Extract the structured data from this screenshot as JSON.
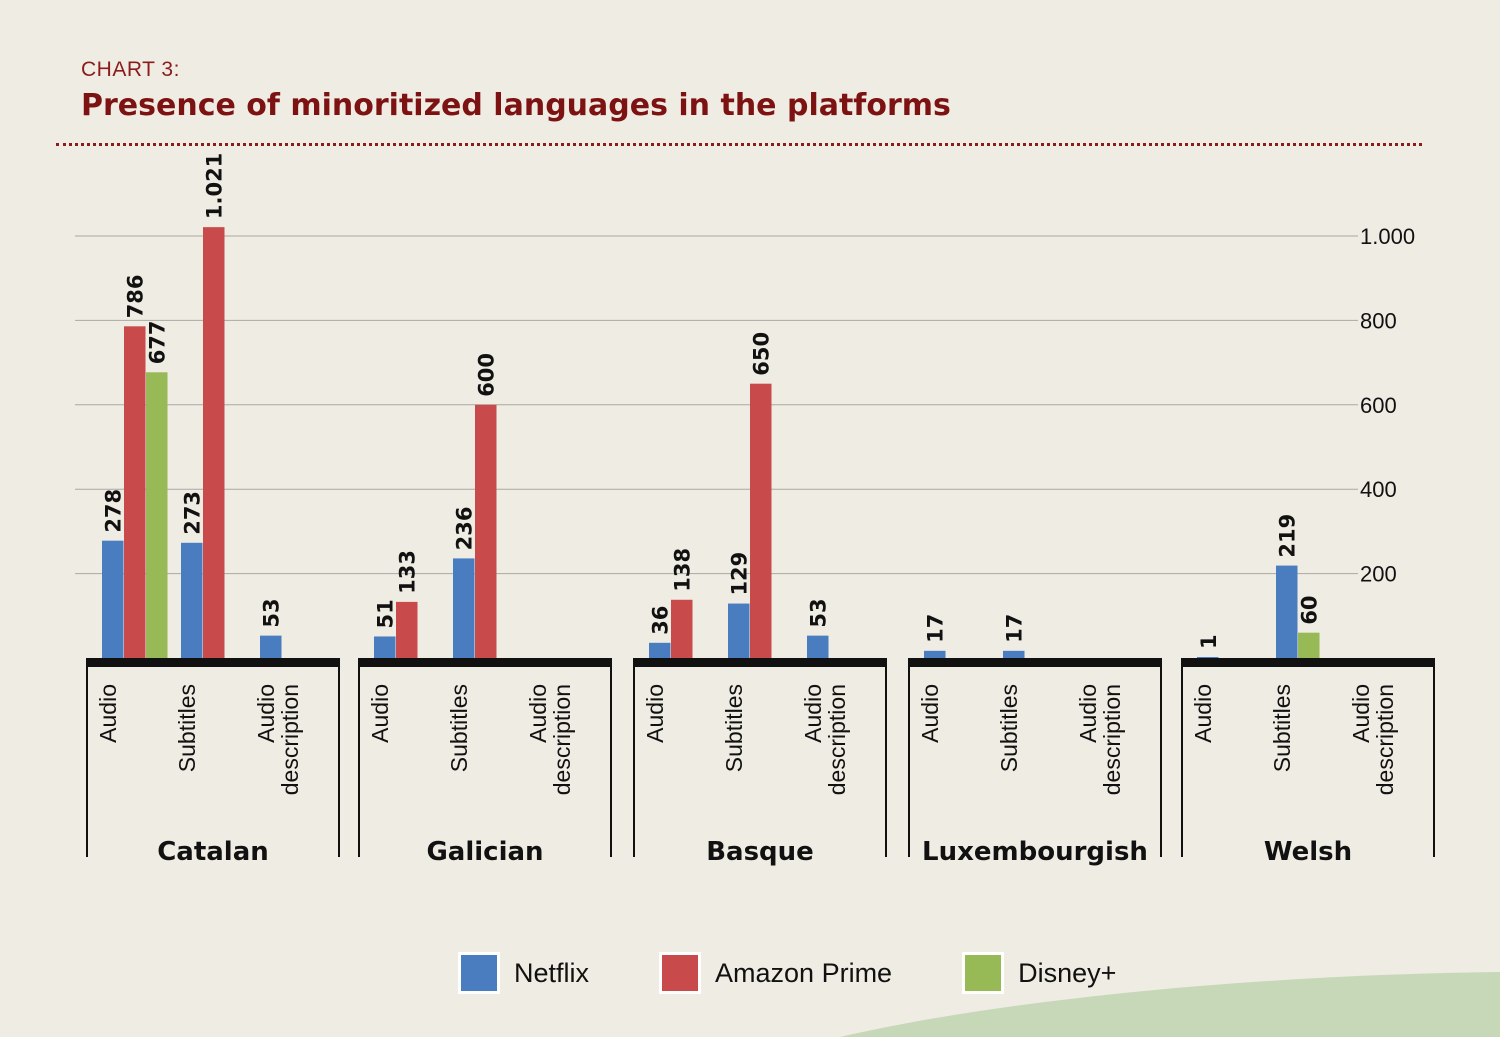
{
  "header": {
    "kicker": "CHART 3:",
    "title": "Presence of minoritized languages in the platforms"
  },
  "colors": {
    "netflix": "#4a7cc0",
    "amazon": "#c94a4a",
    "disney": "#97b956",
    "title": "#7d1212",
    "background": "#efece3"
  },
  "legend": [
    {
      "label": "Netflix",
      "color": "#4a7cc0"
    },
    {
      "label": "Amazon Prime",
      "color": "#c94a4a"
    },
    {
      "label": "Disney+",
      "color": "#97b956"
    }
  ],
  "chart_data": {
    "type": "bar",
    "title": "Presence of minoritized languages in the platforms",
    "y_ticks": [
      "200",
      "400",
      "600",
      "800",
      "1.000"
    ],
    "y_tick_values": [
      200,
      400,
      600,
      800,
      1000
    ],
    "ylim": [
      0,
      1021
    ],
    "grid": true,
    "legend_position": "bottom",
    "series": [
      {
        "name": "Netflix",
        "color": "#4a7cc0"
      },
      {
        "name": "Amazon Prime",
        "color": "#c94a4a"
      },
      {
        "name": "Disney+",
        "color": "#97b956"
      }
    ],
    "groups": [
      {
        "language": "Catalan",
        "categories": [
          {
            "label": "Audio",
            "bars": [
              {
                "series": "Netflix",
                "value": 278,
                "label": "278"
              },
              {
                "series": "Amazon Prime",
                "value": 786,
                "label": "786"
              },
              {
                "series": "Disney+",
                "value": 677,
                "label": "677"
              }
            ]
          },
          {
            "label": "Subtitles",
            "bars": [
              {
                "series": "Netflix",
                "value": 273,
                "label": "273"
              },
              {
                "series": "Amazon Prime",
                "value": 1021,
                "label": "1.021"
              }
            ]
          },
          {
            "label": "Audio description",
            "bars": [
              {
                "series": "Netflix",
                "value": 53,
                "label": "53"
              }
            ]
          }
        ]
      },
      {
        "language": "Galician",
        "categories": [
          {
            "label": "Audio",
            "bars": [
              {
                "series": "Netflix",
                "value": 51,
                "label": "51"
              },
              {
                "series": "Amazon Prime",
                "value": 133,
                "label": "133"
              }
            ]
          },
          {
            "label": "Subtitles",
            "bars": [
              {
                "series": "Netflix",
                "value": 236,
                "label": "236"
              },
              {
                "series": "Amazon Prime",
                "value": 600,
                "label": "600"
              }
            ]
          },
          {
            "label": "Audio description",
            "bars": []
          }
        ]
      },
      {
        "language": "Basque",
        "categories": [
          {
            "label": "Audio",
            "bars": [
              {
                "series": "Netflix",
                "value": 36,
                "label": "36"
              },
              {
                "series": "Amazon Prime",
                "value": 138,
                "label": "138"
              }
            ]
          },
          {
            "label": "Subtitles",
            "bars": [
              {
                "series": "Netflix",
                "value": 129,
                "label": "129"
              },
              {
                "series": "Amazon Prime",
                "value": 650,
                "label": "650"
              }
            ]
          },
          {
            "label": "Audio description",
            "bars": [
              {
                "series": "Netflix",
                "value": 53,
                "label": "53"
              }
            ]
          }
        ]
      },
      {
        "language": "Luxembourgish",
        "categories": [
          {
            "label": "Audio",
            "bars": [
              {
                "series": "Netflix",
                "value": 17,
                "label": "17"
              }
            ]
          },
          {
            "label": "Subtitles",
            "bars": [
              {
                "series": "Netflix",
                "value": 17,
                "label": "17"
              }
            ]
          },
          {
            "label": "Audio description",
            "bars": []
          }
        ]
      },
      {
        "language": "Welsh",
        "categories": [
          {
            "label": "Audio",
            "bars": [
              {
                "series": "Netflix",
                "value": 1,
                "label": "1"
              }
            ]
          },
          {
            "label": "Subtitles",
            "bars": [
              {
                "series": "Netflix",
                "value": 219,
                "label": "219"
              },
              {
                "series": "Disney+",
                "value": 60,
                "label": "60"
              }
            ]
          },
          {
            "label": "Audio description",
            "bars": []
          }
        ]
      }
    ]
  }
}
